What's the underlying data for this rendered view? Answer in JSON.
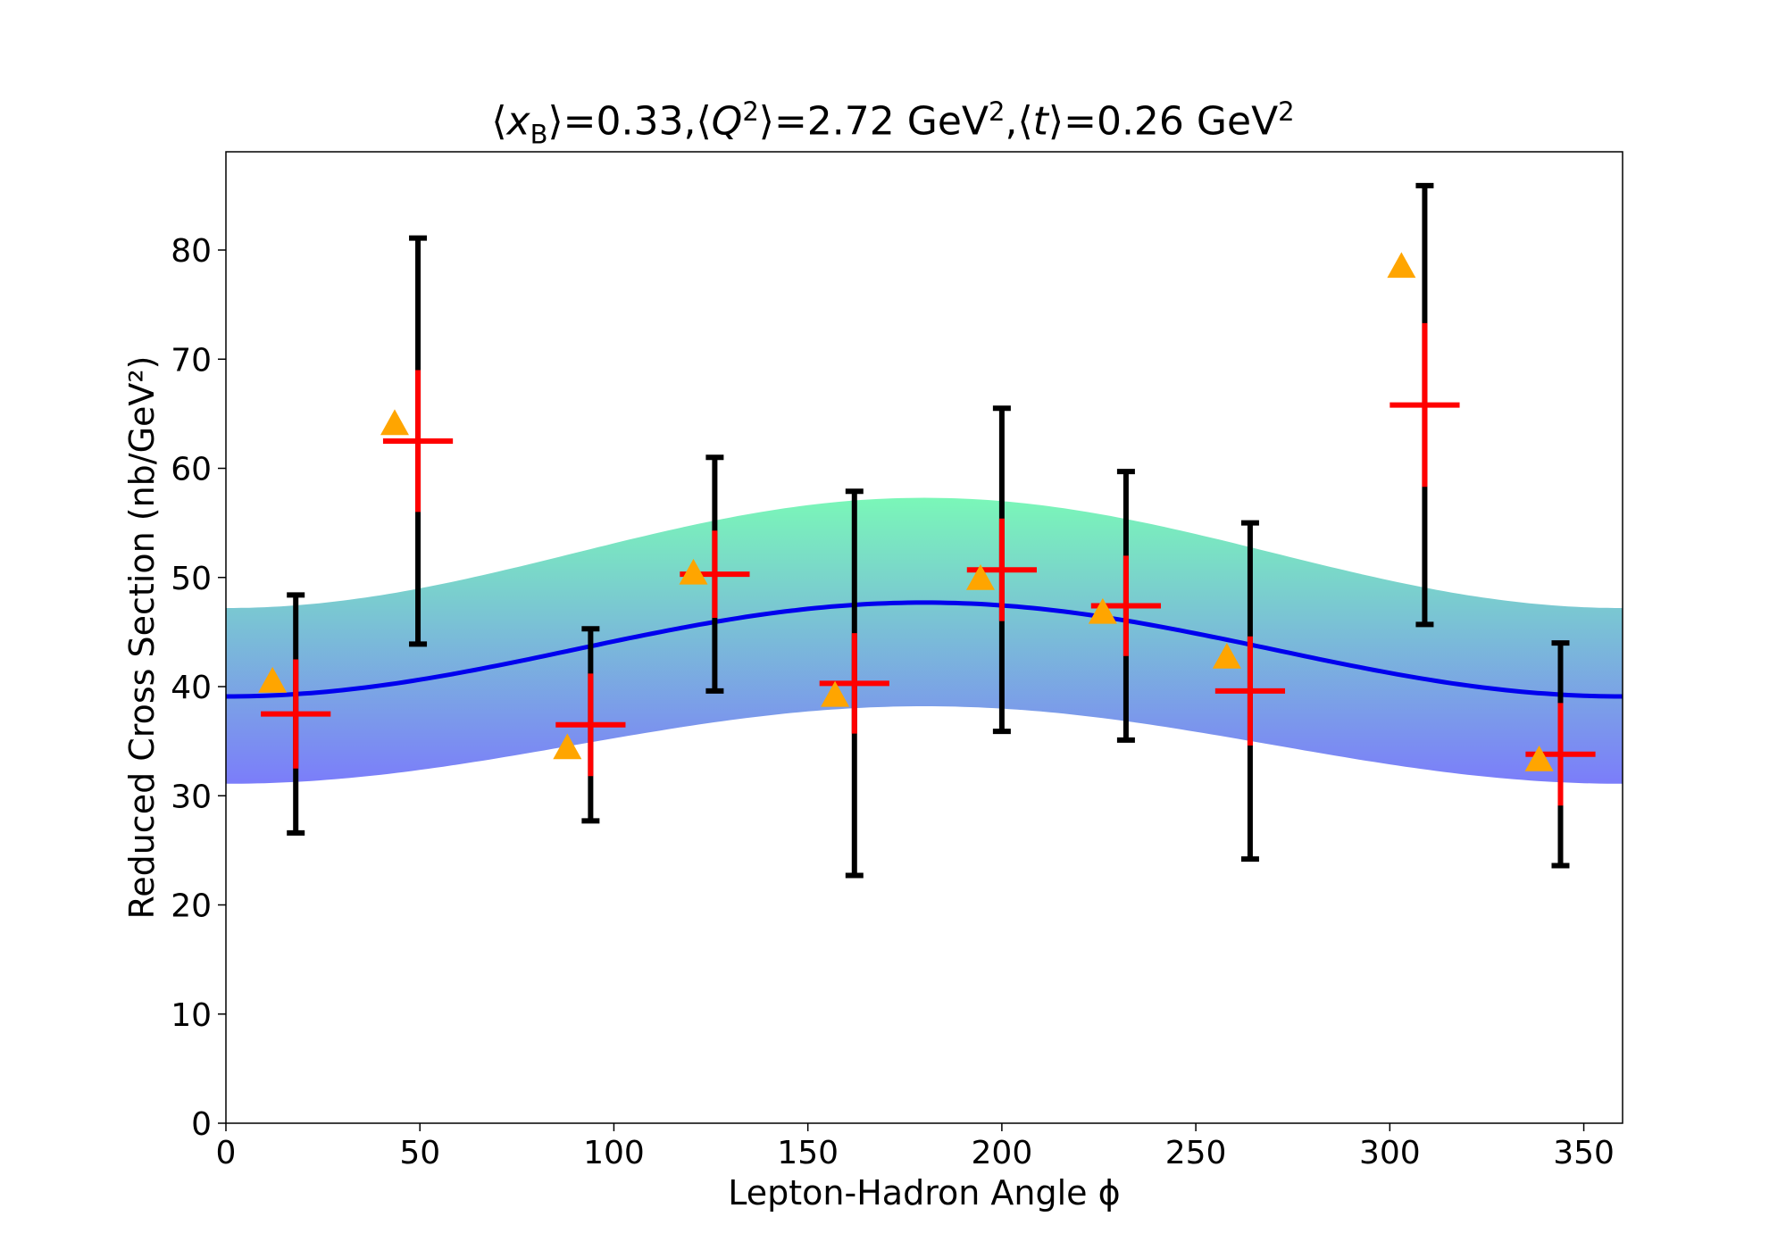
{
  "chart_data": {
    "type": "scatter",
    "title": {
      "xb_sym": "x",
      "xb_sub": "B",
      "xb_val": "=0.33,",
      "q_sym": "Q",
      "q_sup": "2",
      "q_val": "=2.72 GeV",
      "q_unit_sup": "2",
      "t_sym": "t",
      "t_val": "=0.26 GeV",
      "t_unit_sup": "2"
    },
    "xlabel": "Lepton-Hadron Angle ϕ",
    "ylabel": "Reduced Cross Section (nb/GeV²)",
    "xlim": [
      0,
      360
    ],
    "ylim": [
      0,
      89
    ],
    "xticks": [
      0,
      50,
      100,
      150,
      200,
      250,
      300,
      350
    ],
    "yticks": [
      0,
      10,
      20,
      30,
      40,
      50,
      60,
      70,
      80
    ],
    "grid": false,
    "measurements": {
      "x": [
        18,
        49.5,
        94,
        126,
        162,
        200,
        232,
        264,
        309,
        344
      ],
      "y": [
        37.5,
        62.5,
        36.5,
        50.3,
        40.3,
        50.7,
        47.4,
        39.6,
        65.8,
        33.8
      ],
      "x_err": [
        9,
        9,
        9,
        9,
        9,
        9,
        9,
        9,
        9,
        9
      ],
      "y_err_stat": [
        5,
        6.5,
        4.7,
        4,
        4.6,
        4.7,
        4.6,
        5,
        7.5,
        4.7
      ],
      "y_err_total": [
        10.9,
        18.6,
        8.8,
        10.7,
        17.6,
        14.8,
        12.3,
        15.4,
        20.1,
        10.2
      ],
      "colors": {
        "marker": "#ff0000",
        "stat_error": "#ff0000",
        "total_error": "#000000"
      }
    },
    "model_points": {
      "x": [
        12,
        43.5,
        88,
        120.5,
        157,
        194.5,
        226,
        258,
        303,
        338.5
      ],
      "y": [
        40.5,
        64.1,
        34.4,
        50.4,
        39.2,
        49.9,
        46.8,
        42.7,
        78.5,
        33.3
      ],
      "color": "#ffa500",
      "marker": "triangle"
    },
    "fit_curve": {
      "color": "#0000ee",
      "y_at_0": 39.1,
      "y_at_180": 47.7
    },
    "uncertainty_band": {
      "upper_at_0": 47.2,
      "upper_at_180": 57.3,
      "lower_at_0": 31.1,
      "lower_at_180": 38.2,
      "color_top": "#7af7b8",
      "color_bottom": "#7b7dfa"
    }
  }
}
